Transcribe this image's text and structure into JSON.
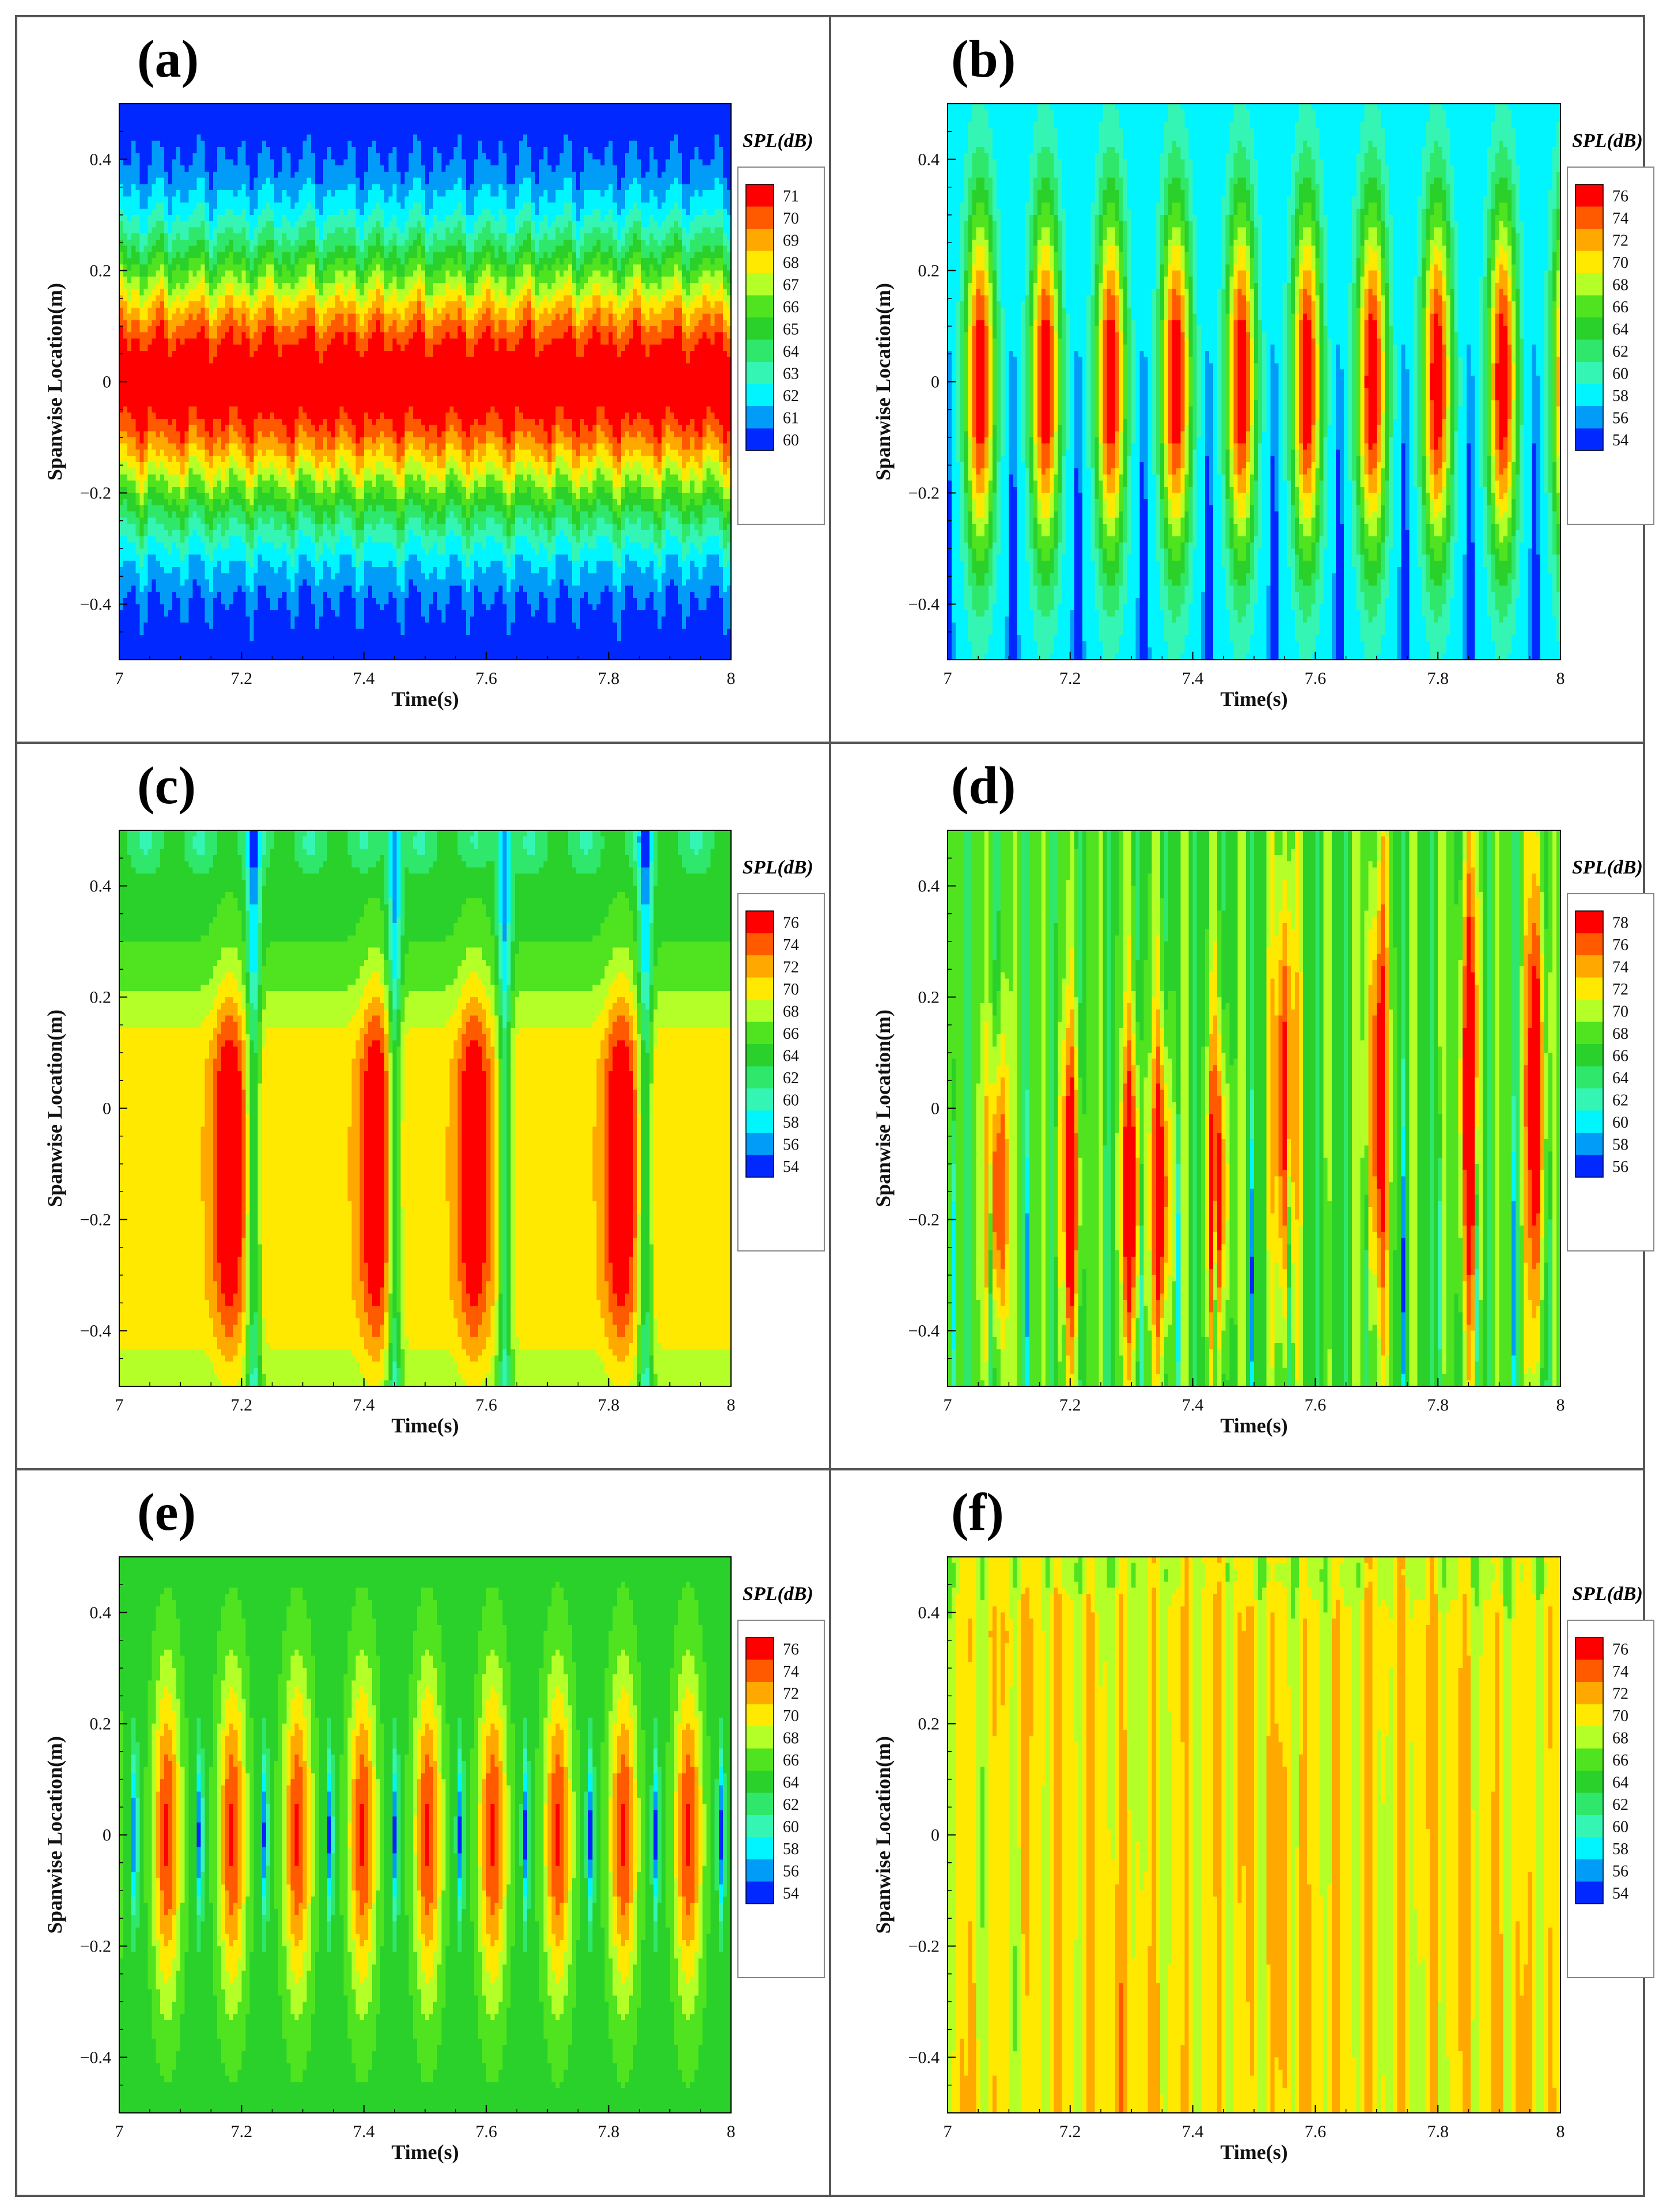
{
  "chart_data": [
    {
      "type": "heatmap",
      "panel": "(a)",
      "pattern": "horizontal",
      "xlabel": "Time(s)",
      "ylabel": "Spanwise Location(m)",
      "xlim": [
        7,
        8
      ],
      "ylim": [
        -0.5,
        0.5
      ],
      "xticks": [
        "7",
        "7.2",
        "7.4",
        "7.6",
        "7.8",
        "8"
      ],
      "yticks": [
        "-0.4",
        "-0.2",
        "0",
        "0.2",
        "0.4"
      ],
      "colorbar": {
        "title": "SPL(dB)",
        "min": 60,
        "max": 71,
        "labels": [
          "71",
          "70",
          "69",
          "68",
          "67",
          "66",
          "65",
          "64",
          "63",
          "62",
          "61",
          "60"
        ]
      },
      "params": {
        "peak": 70.5,
        "sigma": 0.3,
        "floor": 59.5,
        "period": 0.06,
        "amp": 0.4
      }
    },
    {
      "type": "heatmap",
      "panel": "(b)",
      "pattern": "lobes",
      "xlabel": "Time(s)",
      "ylabel": "Spanwise Location(m)",
      "xlim": [
        7,
        8
      ],
      "ylim": [
        -0.5,
        0.5
      ],
      "xticks": [
        "7",
        "7.2",
        "7.4",
        "7.6",
        "7.8",
        "8"
      ],
      "yticks": [
        "-0.4",
        "-0.2",
        "0",
        "0.2",
        "0.4"
      ],
      "colorbar": {
        "title": "SPL(dB)",
        "min": 54,
        "max": 76,
        "labels": [
          "76",
          "74",
          "72",
          "70",
          "68",
          "66",
          "64",
          "62",
          "60",
          "58",
          "56",
          "54"
        ]
      },
      "params": {
        "period": 0.1065,
        "phase": 0.0,
        "base": 57,
        "peak": 77.5,
        "sy": 0.42,
        "sx": 0.28,
        "dip": 8
      }
    },
    {
      "type": "heatmap",
      "panel": "(c)",
      "pattern": "broad",
      "xlabel": "Time(s)",
      "ylabel": "Spanwise Location(m)",
      "xlim": [
        7,
        8
      ],
      "ylim": [
        -0.5,
        0.5
      ],
      "xticks": [
        "7",
        "7.2",
        "7.4",
        "7.6",
        "7.8",
        "8"
      ],
      "yticks": [
        "-0.4",
        "-0.2",
        "0",
        "0.2",
        "0.4"
      ],
      "colorbar": {
        "title": "SPL(dB)",
        "min": 54,
        "max": 76,
        "labels": [
          "76",
          "74",
          "72",
          "70",
          "68",
          "66",
          "64",
          "62",
          "60",
          "58",
          "56",
          "54"
        ]
      },
      "params": {
        "cores": [
          7.18,
          7.42,
          7.58,
          7.82
        ],
        "gaps": [
          7.22,
          7.45,
          7.63,
          7.86
        ],
        "base": 70.5,
        "peak": 77
      }
    },
    {
      "type": "heatmap",
      "panel": "(d)",
      "pattern": "streaks",
      "xlabel": "Time(s)",
      "ylabel": "Spanwise Location(m)",
      "xlim": [
        7,
        8
      ],
      "ylim": [
        -0.5,
        0.5
      ],
      "xticks": [
        "7",
        "7.2",
        "7.4",
        "7.6",
        "7.8",
        "8"
      ],
      "yticks": [
        "-0.4",
        "-0.2",
        "0",
        "0.2",
        "0.4"
      ],
      "colorbar": {
        "title": "SPL(dB)",
        "min": 56,
        "max": 78,
        "labels": [
          "78",
          "76",
          "74",
          "72",
          "70",
          "68",
          "66",
          "64",
          "62",
          "60",
          "58",
          "56"
        ]
      },
      "params": {
        "cores": [
          7.08,
          7.2,
          7.3,
          7.35,
          7.44,
          7.55,
          7.7,
          7.85,
          7.96
        ],
        "base": 67,
        "peak": 79.5
      }
    },
    {
      "type": "heatmap",
      "panel": "(e)",
      "pattern": "lobes",
      "xlabel": "Time(s)",
      "ylabel": "Spanwise Location(m)",
      "xlim": [
        7,
        8
      ],
      "ylim": [
        -0.5,
        0.5
      ],
      "xticks": [
        "7",
        "7.2",
        "7.4",
        "7.6",
        "7.8",
        "8"
      ],
      "yticks": [
        "-0.4",
        "-0.2",
        "0",
        "0.2",
        "0.4"
      ],
      "colorbar": {
        "title": "SPL(dB)",
        "min": 54,
        "max": 76,
        "labels": [
          "76",
          "74",
          "72",
          "70",
          "68",
          "66",
          "64",
          "62",
          "60",
          "58",
          "56",
          "54"
        ]
      },
      "params": {
        "period": 0.1065,
        "phase": 0.025,
        "base": 64,
        "peak": 75.5,
        "sy": 0.36,
        "sx": 0.26,
        "dip": 10
      }
    },
    {
      "type": "heatmap",
      "panel": "(f)",
      "pattern": "fine",
      "xlabel": "Time(s)",
      "ylabel": "Spanwise Location(m)",
      "xlim": [
        7,
        8
      ],
      "ylim": [
        -0.5,
        0.5
      ],
      "xticks": [
        "7",
        "7.2",
        "7.4",
        "7.6",
        "7.8",
        "8"
      ],
      "yticks": [
        "-0.4",
        "-0.2",
        "0",
        "0.2",
        "0.4"
      ],
      "colorbar": {
        "title": "SPL(dB)",
        "min": 54,
        "max": 76,
        "labels": [
          "76",
          "74",
          "72",
          "70",
          "68",
          "66",
          "64",
          "62",
          "60",
          "58",
          "56",
          "54"
        ]
      },
      "params": {
        "period": 0.0505,
        "base": 70,
        "peak": 73
      }
    }
  ]
}
